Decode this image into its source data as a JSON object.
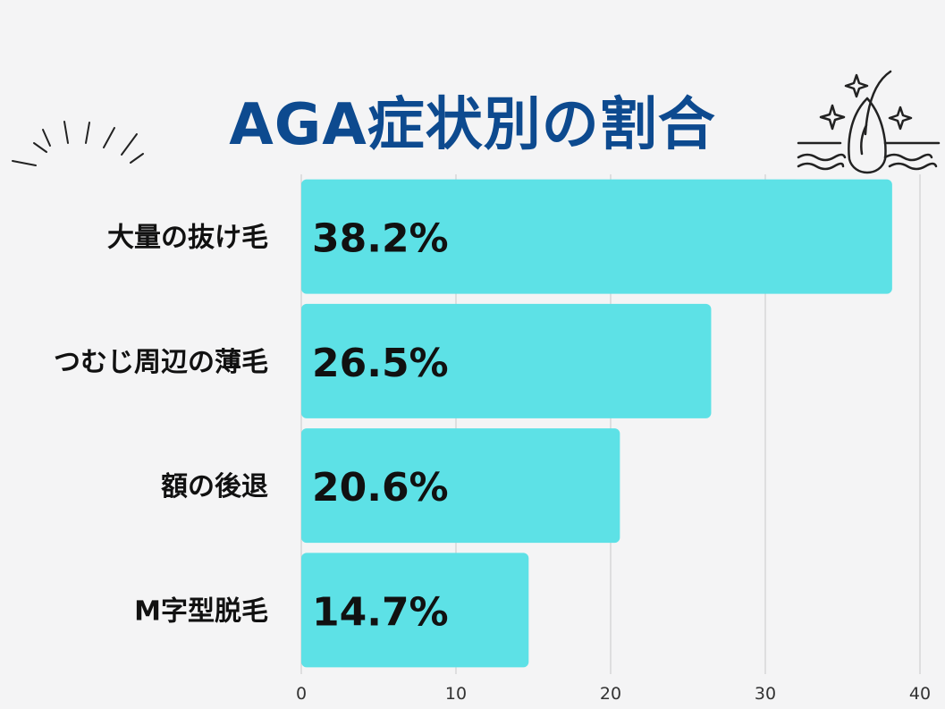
{
  "title": "AGA症状別の割合",
  "colors": {
    "bar": "#5de1e6",
    "title": "#0d4a8f",
    "grid": "#c9c9c9",
    "background": "#f4f4f5"
  },
  "icons": [
    "sparkle-lines-icon",
    "hair-follicle-icon"
  ],
  "chart_data": {
    "type": "bar",
    "orientation": "horizontal",
    "categories": [
      "大量の抜け毛",
      "つむじ周辺の薄毛",
      "額の後退",
      "M字型脱毛"
    ],
    "values": [
      38.2,
      26.5,
      20.6,
      14.7
    ],
    "data_labels": [
      "38.2%",
      "26.5%",
      "20.6%",
      "14.7%"
    ],
    "xlim": [
      0,
      40
    ],
    "xticks": [
      "0",
      "10",
      "20",
      "30",
      "40"
    ],
    "grid": true,
    "legend": "none"
  }
}
